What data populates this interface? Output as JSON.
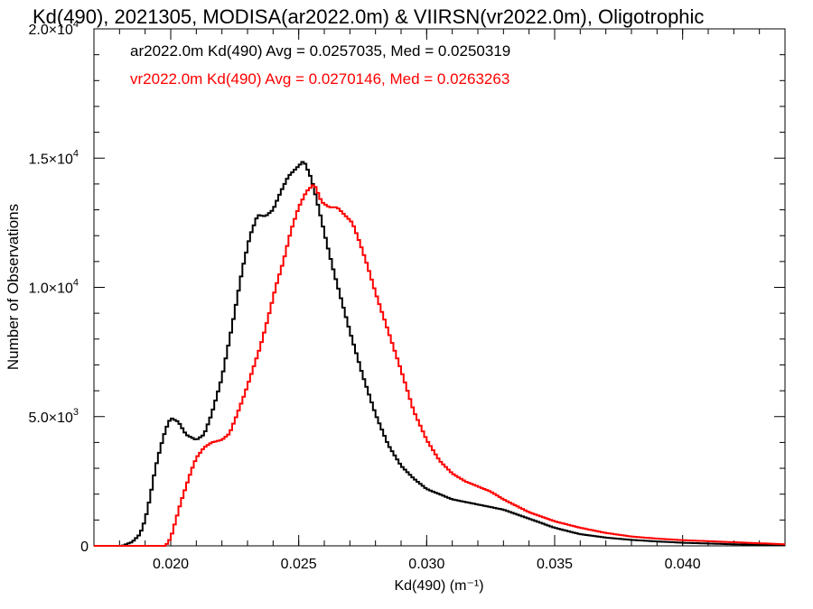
{
  "chart_data": {
    "type": "line",
    "title": "Kd(490), 2021305, MODISA(ar2022.0m) & VIIRSN(vr2022.0m), Oligotrophic",
    "xlabel": "Kd(490) (m⁻¹)",
    "ylabel": "Number of Observations",
    "xlim": [
      0.017,
      0.044
    ],
    "ylim": [
      0,
      20000
    ],
    "x_ticks": [
      {
        "value": 0.02,
        "label": "0.020"
      },
      {
        "value": 0.025,
        "label": "0.025"
      },
      {
        "value": 0.03,
        "label": "0.030"
      },
      {
        "value": 0.035,
        "label": "0.035"
      },
      {
        "value": 0.04,
        "label": "0.040"
      }
    ],
    "y_ticks": [
      {
        "value": 0,
        "mantissa": "0",
        "exponent": ""
      },
      {
        "value": 5000,
        "mantissa": "5.0×10",
        "exponent": "3"
      },
      {
        "value": 10000,
        "mantissa": "1.0×10",
        "exponent": "4"
      },
      {
        "value": 15000,
        "mantissa": "1.5×10",
        "exponent": "4"
      },
      {
        "value": 20000,
        "mantissa": "2.0×10",
        "exponent": "4"
      }
    ],
    "step_style": "histogram",
    "grid": false,
    "series": [
      {
        "name": "ar2022.0m",
        "color": "#000000",
        "stats_label": "ar2022.0m Kd(490) Avg = 0.0257035, Med = 0.0250319",
        "points": [
          [
            0.017,
            0
          ],
          [
            0.0181,
            0
          ],
          [
            0.0185,
            150
          ],
          [
            0.0188,
            450
          ],
          [
            0.019,
            1000
          ],
          [
            0.0192,
            1900
          ],
          [
            0.0194,
            3000
          ],
          [
            0.0196,
            3800
          ],
          [
            0.0198,
            4500
          ],
          [
            0.02,
            4950
          ],
          [
            0.0203,
            4800
          ],
          [
            0.0206,
            4300
          ],
          [
            0.021,
            4100
          ],
          [
            0.0213,
            4300
          ],
          [
            0.0216,
            5100
          ],
          [
            0.022,
            6500
          ],
          [
            0.0224,
            8500
          ],
          [
            0.0228,
            10700
          ],
          [
            0.0231,
            12000
          ],
          [
            0.0234,
            12800
          ],
          [
            0.0237,
            12750
          ],
          [
            0.024,
            13000
          ],
          [
            0.0243,
            13700
          ],
          [
            0.0246,
            14300
          ],
          [
            0.0249,
            14600
          ],
          [
            0.0252,
            14900
          ],
          [
            0.0255,
            14200
          ],
          [
            0.0258,
            13000
          ],
          [
            0.0261,
            11700
          ],
          [
            0.0264,
            10500
          ],
          [
            0.0267,
            9400
          ],
          [
            0.027,
            8300
          ],
          [
            0.0275,
            6600
          ],
          [
            0.028,
            5100
          ],
          [
            0.0285,
            3900
          ],
          [
            0.029,
            3100
          ],
          [
            0.0295,
            2600
          ],
          [
            0.03,
            2200
          ],
          [
            0.0305,
            2000
          ],
          [
            0.031,
            1800
          ],
          [
            0.032,
            1600
          ],
          [
            0.033,
            1400
          ],
          [
            0.034,
            1050
          ],
          [
            0.035,
            700
          ],
          [
            0.036,
            450
          ],
          [
            0.037,
            320
          ],
          [
            0.038,
            230
          ],
          [
            0.039,
            170
          ],
          [
            0.04,
            120
          ],
          [
            0.041,
            90
          ],
          [
            0.042,
            60
          ],
          [
            0.043,
            40
          ],
          [
            0.044,
            30
          ]
        ]
      },
      {
        "name": "vr2022.0m",
        "color": "#ff0000",
        "stats_label": "vr2022.0m Kd(490) Avg = 0.0270146, Med = 0.0263263",
        "points": [
          [
            0.017,
            0
          ],
          [
            0.0198,
            0
          ],
          [
            0.02,
            300
          ],
          [
            0.0202,
            1000
          ],
          [
            0.0204,
            1700
          ],
          [
            0.0206,
            2300
          ],
          [
            0.0208,
            2900
          ],
          [
            0.021,
            3400
          ],
          [
            0.0213,
            3800
          ],
          [
            0.0216,
            4000
          ],
          [
            0.022,
            4100
          ],
          [
            0.0223,
            4350
          ],
          [
            0.0226,
            5100
          ],
          [
            0.0229,
            5900
          ],
          [
            0.0232,
            6800
          ],
          [
            0.0235,
            7700
          ],
          [
            0.0238,
            8800
          ],
          [
            0.0241,
            10000
          ],
          [
            0.0244,
            11000
          ],
          [
            0.0247,
            12200
          ],
          [
            0.025,
            13100
          ],
          [
            0.0253,
            13700
          ],
          [
            0.0256,
            14000
          ],
          [
            0.0259,
            13300
          ],
          [
            0.0262,
            13100
          ],
          [
            0.0265,
            13100
          ],
          [
            0.0268,
            12800
          ],
          [
            0.0271,
            12500
          ],
          [
            0.0274,
            11700
          ],
          [
            0.0277,
            10800
          ],
          [
            0.028,
            9800
          ],
          [
            0.0285,
            8300
          ],
          [
            0.029,
            6800
          ],
          [
            0.0295,
            5200
          ],
          [
            0.03,
            4100
          ],
          [
            0.0305,
            3300
          ],
          [
            0.031,
            2800
          ],
          [
            0.0315,
            2500
          ],
          [
            0.032,
            2300
          ],
          [
            0.0325,
            2100
          ],
          [
            0.033,
            1800
          ],
          [
            0.034,
            1300
          ],
          [
            0.035,
            950
          ],
          [
            0.036,
            700
          ],
          [
            0.037,
            500
          ],
          [
            0.038,
            360
          ],
          [
            0.039,
            280
          ],
          [
            0.04,
            220
          ],
          [
            0.041,
            180
          ],
          [
            0.042,
            140
          ],
          [
            0.043,
            100
          ],
          [
            0.044,
            60
          ]
        ]
      }
    ]
  }
}
